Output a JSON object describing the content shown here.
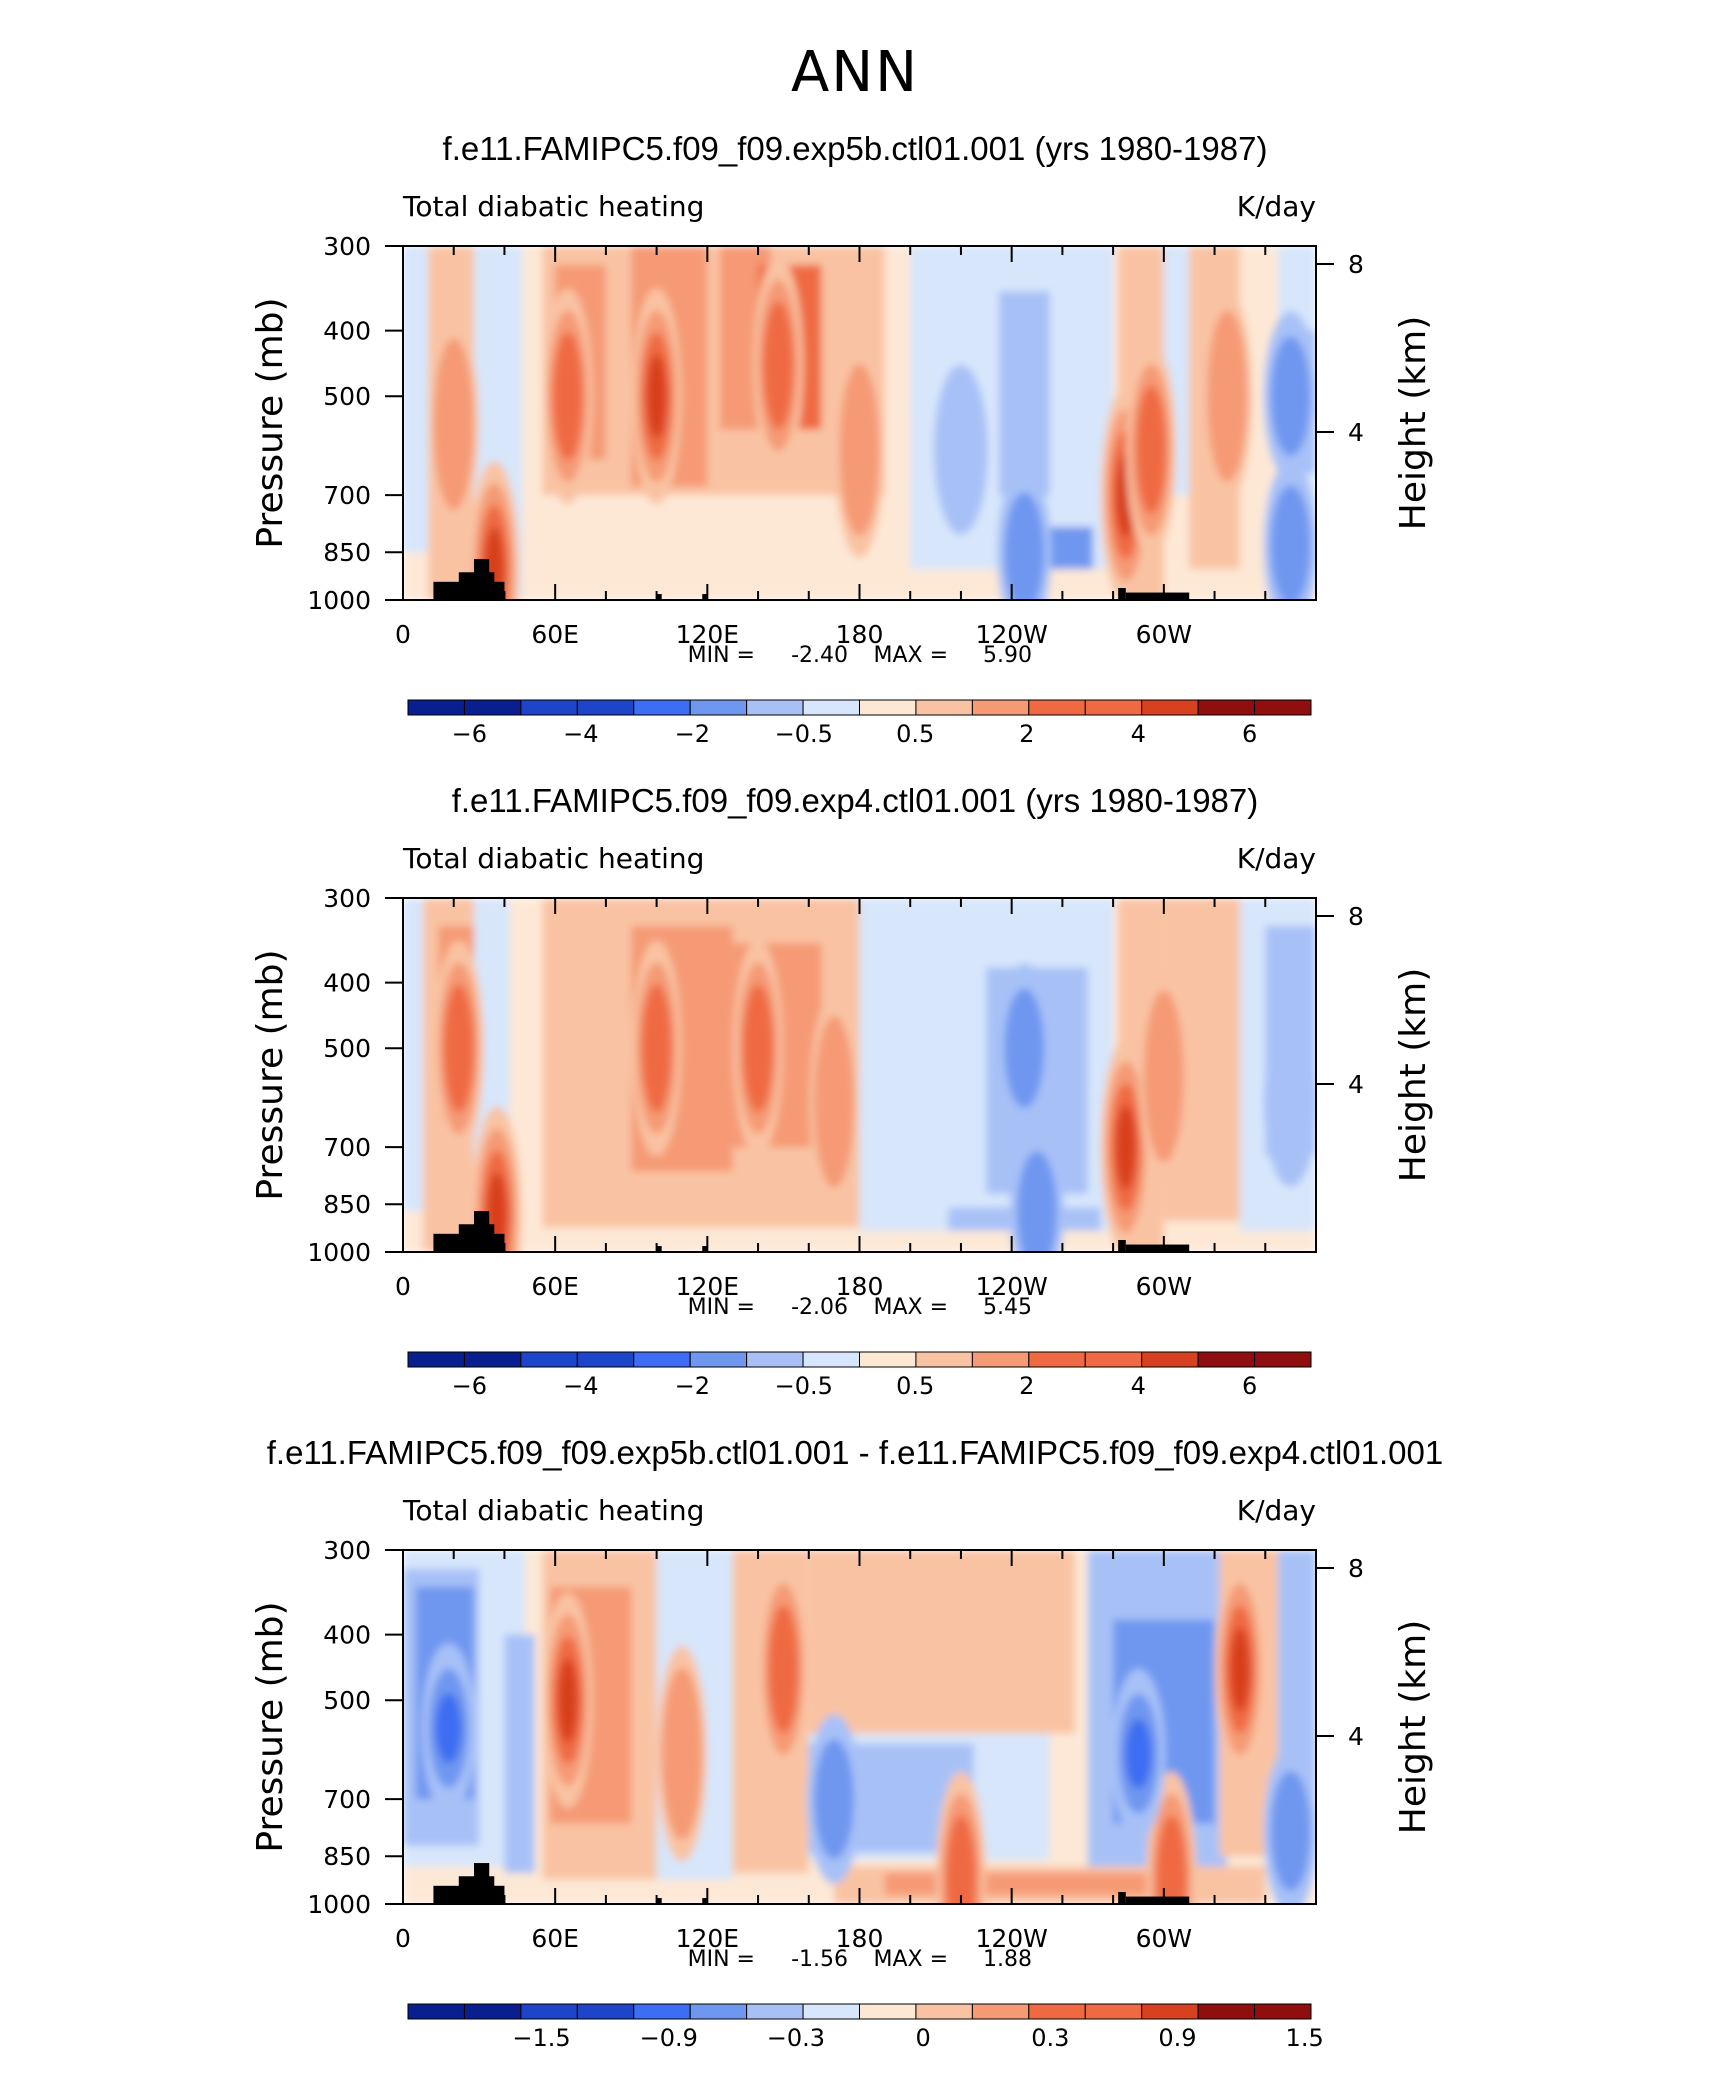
{
  "page": {
    "title": "ANN"
  },
  "chart_data": [
    {
      "type": "heatmap",
      "title": "f.e11.FAMIPC5.f09_f09.exp5b.ctl01.001 (yrs 1980-1987)",
      "subtitle_left": "Total diabatic heating",
      "units": "K/day",
      "ylabel": "Pressure (mb)",
      "ylabel_right": "Height (km)",
      "x_ticks": [
        "0",
        "60E",
        "120E",
        "180",
        "120W",
        "60W"
      ],
      "y_ticks": [
        "300",
        "400",
        "500",
        "700",
        "850",
        "1000"
      ],
      "y2_ticks": [
        "8",
        "4"
      ],
      "ylim": [
        1000,
        300
      ],
      "min_label": "MIN =",
      "min_value": "-2.40",
      "max_label": "MAX =",
      "max_value": "5.90",
      "colorbar_labels": [
        "-6",
        "-4",
        "-2",
        "-0.5",
        "0.5",
        "2",
        "4",
        "6"
      ],
      "colors": {
        "neg5": "#0a1f8f",
        "neg4": "#1c45c9",
        "neg3": "#3d6df2",
        "neg2": "#6f97f0",
        "neg1": "#a7c1f7",
        "neg0": "#d7e6fb",
        "pos0": "#fde8d6",
        "pos1": "#f9c3a3",
        "pos2": "#f59a74",
        "pos3": "#ef6a43",
        "pos4": "#d8411f",
        "pos5": "#8f0f10"
      },
      "heating_features": [
        {
          "lon": 20,
          "p": 550,
          "level": 2
        },
        {
          "lon": 36,
          "p": 900,
          "level": 4
        },
        {
          "lon": 65,
          "p": 500,
          "level": 3
        },
        {
          "lon": 100,
          "p": 500,
          "level": 4
        },
        {
          "lon": 148,
          "p": 450,
          "level": 3
        },
        {
          "lon": 180,
          "p": 600,
          "level": 2
        },
        {
          "lon": 285,
          "p": 700,
          "level": 4
        },
        {
          "lon": 295,
          "p": 600,
          "level": 3
        },
        {
          "lon": 325,
          "p": 500,
          "level": 2
        }
      ],
      "cooling_features": [
        {
          "lon": 220,
          "p": 600,
          "level": 1
        },
        {
          "lon": 245,
          "p": 850,
          "level": 2
        },
        {
          "lon": 350,
          "p": 500,
          "level": 2
        },
        {
          "lon": 350,
          "p": 830,
          "level": 2
        }
      ]
    },
    {
      "type": "heatmap",
      "title": "f.e11.FAMIPC5.f09_f09.exp4.ctl01.001 (yrs 1980-1987)",
      "subtitle_left": "Total diabatic heating",
      "units": "K/day",
      "ylabel": "Pressure (mb)",
      "ylabel_right": "Height (km)",
      "x_ticks": [
        "0",
        "60E",
        "120E",
        "180",
        "120W",
        "60W"
      ],
      "y_ticks": [
        "300",
        "400",
        "500",
        "700",
        "850",
        "1000"
      ],
      "y2_ticks": [
        "8",
        "4"
      ],
      "ylim": [
        1000,
        300
      ],
      "min_label": "MIN =",
      "min_value": "-2.06",
      "max_label": "MAX =",
      "max_value": "5.45",
      "colorbar_labels": [
        "-6",
        "-4",
        "-2",
        "-0.5",
        "0.5",
        "2",
        "4",
        "6"
      ],
      "heating_features": [
        {
          "lon": 22,
          "p": 500,
          "level": 3
        },
        {
          "lon": 37,
          "p": 880,
          "level": 4
        },
        {
          "lon": 100,
          "p": 500,
          "level": 3
        },
        {
          "lon": 140,
          "p": 500,
          "level": 3
        },
        {
          "lon": 170,
          "p": 600,
          "level": 2
        },
        {
          "lon": 285,
          "p": 700,
          "level": 4
        },
        {
          "lon": 300,
          "p": 550,
          "level": 2
        }
      ],
      "cooling_features": [
        {
          "lon": 245,
          "p": 500,
          "level": 2
        },
        {
          "lon": 250,
          "p": 870,
          "level": 2
        },
        {
          "lon": 350,
          "p": 600,
          "level": 1
        }
      ]
    },
    {
      "type": "heatmap",
      "title": "f.e11.FAMIPC5.f09_f09.exp5b.ctl01.001 - f.e11.FAMIPC5.f09_f09.exp4.ctl01.001",
      "subtitle_left": "Total diabatic heating",
      "units": "K/day",
      "ylabel": "Pressure (mb)",
      "ylabel_right": "Height (km)",
      "x_ticks": [
        "0",
        "60E",
        "120E",
        "180",
        "120W",
        "60W"
      ],
      "y_ticks": [
        "300",
        "400",
        "500",
        "700",
        "850",
        "1000"
      ],
      "y2_ticks": [
        "8",
        "4"
      ],
      "ylim": [
        1000,
        300
      ],
      "min_label": "MIN =",
      "min_value": "-1.56",
      "max_label": "MAX =",
      "max_value": "1.88",
      "colorbar_labels": [
        "-1.5",
        "-0.9",
        "-0.3",
        "0",
        "0.3",
        "0.9",
        "1.5"
      ],
      "heating_features": [
        {
          "lon": 65,
          "p": 500,
          "level": 4
        },
        {
          "lon": 110,
          "p": 600,
          "level": 2
        },
        {
          "lon": 150,
          "p": 450,
          "level": 3
        },
        {
          "lon": 220,
          "p": 920,
          "level": 3
        },
        {
          "lon": 303,
          "p": 920,
          "level": 3
        },
        {
          "lon": 330,
          "p": 450,
          "level": 4
        }
      ],
      "cooling_features": [
        {
          "lon": 18,
          "p": 550,
          "level": 3
        },
        {
          "lon": 170,
          "p": 700,
          "level": 2
        },
        {
          "lon": 290,
          "p": 600,
          "level": 3
        },
        {
          "lon": 350,
          "p": 780,
          "level": 2
        }
      ]
    }
  ]
}
